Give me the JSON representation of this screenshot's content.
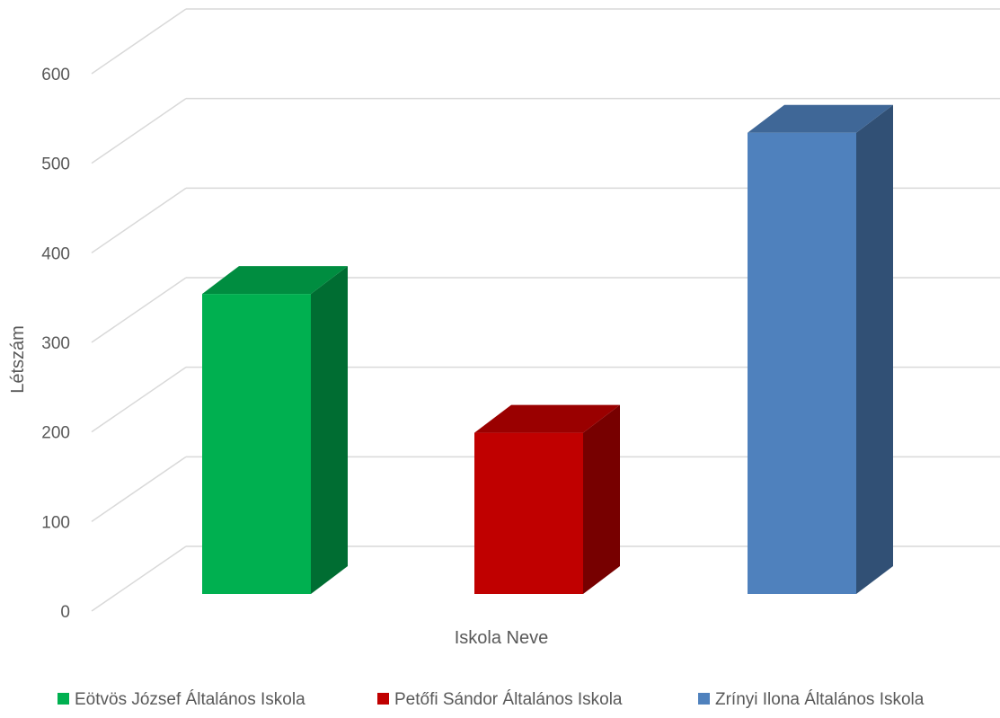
{
  "chart_data": {
    "type": "bar",
    "style": "3d-clustered-column",
    "categories": [
      "Iskola Neve"
    ],
    "series": [
      {
        "name": "Eötvös József Általános Iskola",
        "values": [
          335
        ],
        "color": "#00B050"
      },
      {
        "name": "Petőfi Sándor Általános Iskola",
        "values": [
          180
        ],
        "color": "#C00000"
      },
      {
        "name": "Zrínyi Ilona Általános Iskola",
        "values": [
          515
        ],
        "color": "#4F81BD"
      }
    ],
    "xlabel": "Iskola Neve",
    "ylabel": "Létszám",
    "ylim": [
      0,
      600
    ],
    "yticks": [
      "0",
      "100",
      "200",
      "300",
      "400",
      "500",
      "600"
    ],
    "grid": true,
    "legend": "bottom"
  }
}
